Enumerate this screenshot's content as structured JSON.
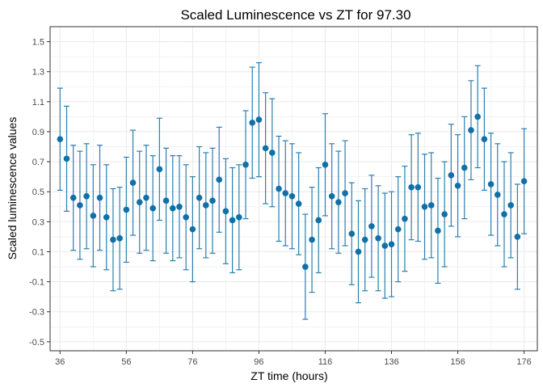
{
  "chart_data": {
    "type": "scatter",
    "title": "Scaled Luminescence vs ZT for 97.30",
    "xlabel": "ZT time (hours)",
    "ylabel": "Scaled luminescence values",
    "x_ticks": [
      36,
      56,
      76,
      96,
      116,
      136,
      156,
      176
    ],
    "x_tick_labels": [
      "36",
      "56",
      "76",
      "96",
      "116",
      "136",
      "156",
      "176"
    ],
    "y_ticks": [
      -0.5,
      -0.3,
      -0.1,
      0.1,
      0.3,
      0.5,
      0.7,
      0.9,
      1.1,
      1.3,
      1.5
    ],
    "y_tick_labels": [
      "-0.5",
      "-0.3",
      "-0.1",
      "0.1",
      "0.3",
      "0.5",
      "0.7",
      "0.9",
      "1.1",
      "1.3",
      "1.5"
    ],
    "xlim": [
      33,
      180
    ],
    "ylim": [
      -0.56,
      1.6
    ],
    "grid": true,
    "colors": {
      "point": "#1070a8",
      "errorbar": "#2b7fb0",
      "grid": "#ebebeb",
      "panel_border": "#333333"
    },
    "series": [
      {
        "x": [
          36,
          38,
          40,
          42,
          44,
          46,
          48,
          50,
          52,
          54,
          56,
          58,
          60,
          62,
          64,
          66,
          68,
          70,
          72,
          74,
          76,
          78,
          80,
          82,
          84,
          86,
          88,
          90,
          92,
          94,
          96,
          98,
          100,
          102,
          104,
          106,
          108,
          110,
          112,
          114,
          116,
          118,
          120,
          122,
          124,
          126,
          128,
          130,
          132,
          134,
          136,
          138,
          140,
          142,
          144,
          146,
          148,
          150,
          152,
          154,
          156,
          158,
          160,
          162,
          164,
          166,
          168,
          170,
          172,
          174,
          176
        ],
        "y": [
          0.85,
          0.72,
          0.46,
          0.41,
          0.47,
          0.34,
          0.46,
          0.33,
          0.18,
          0.19,
          0.38,
          0.56,
          0.43,
          0.46,
          0.39,
          0.65,
          0.44,
          0.39,
          0.4,
          0.33,
          0.25,
          0.46,
          0.41,
          0.44,
          0.58,
          0.37,
          0.31,
          0.33,
          0.68,
          0.96,
          0.98,
          0.79,
          0.76,
          0.52,
          0.49,
          0.47,
          0.42,
          0.0,
          0.18,
          0.31,
          0.68,
          0.47,
          0.43,
          0.49,
          0.22,
          0.1,
          0.18,
          0.27,
          0.19,
          0.14,
          0.15,
          0.25,
          0.32,
          0.53,
          0.53,
          0.4,
          0.41,
          0.24,
          0.35,
          0.61,
          0.54,
          0.66,
          0.91,
          1.0,
          0.85,
          0.55,
          0.48,
          0.35,
          0.41,
          0.2,
          0.57
        ],
        "error": [
          0.34,
          0.35,
          0.35,
          0.36,
          0.35,
          0.34,
          0.35,
          0.35,
          0.34,
          0.34,
          0.35,
          0.35,
          0.34,
          0.35,
          0.35,
          0.34,
          0.35,
          0.35,
          0.34,
          0.35,
          0.35,
          0.34,
          0.35,
          0.35,
          0.35,
          0.35,
          0.35,
          0.35,
          0.36,
          0.37,
          0.38,
          0.37,
          0.36,
          0.35,
          0.35,
          0.35,
          0.34,
          0.35,
          0.35,
          0.35,
          0.34,
          0.35,
          0.34,
          0.35,
          0.34,
          0.34,
          0.34,
          0.34,
          0.35,
          0.35,
          0.35,
          0.35,
          0.35,
          0.35,
          0.36,
          0.35,
          0.35,
          0.35,
          0.35,
          0.34,
          0.34,
          0.34,
          0.33,
          0.34,
          0.34,
          0.34,
          0.34,
          0.35,
          0.35,
          0.35,
          0.35
        ]
      }
    ]
  }
}
